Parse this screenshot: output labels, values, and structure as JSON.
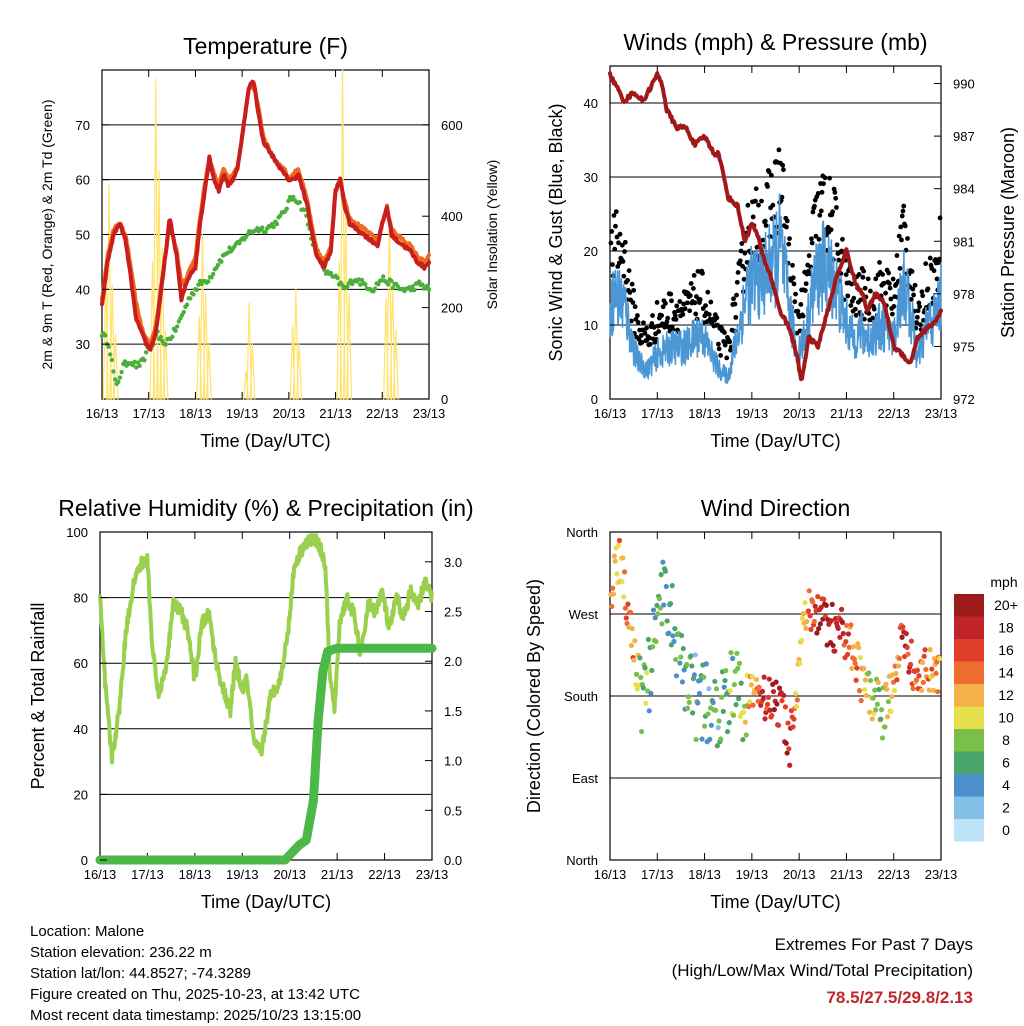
{
  "colors": {
    "temp2m": "#c81e1e",
    "temp9m": "#ee6a1e",
    "dewpoint": "#4caf3a",
    "solar": "#ffe36b",
    "wind": "#4b97d5",
    "gust": "#000000",
    "pressure": "#a01818",
    "rh": "#9ad04e",
    "precip": "#4cb847",
    "extremes": "#c0282d"
  },
  "chart_data": [
    {
      "id": "temperature",
      "type": "line",
      "title": "Temperature (F)",
      "xlabel": "Time (Day/UTC)",
      "ylabel": "2m & 9m T (Red, Orange) & 2m Td (Green)",
      "y2label": "Solar Insolation (Yellow)",
      "x_ticks": [
        "16/13",
        "17/13",
        "18/13",
        "19/13",
        "20/13",
        "21/13",
        "22/13",
        "23/13"
      ],
      "ylim": [
        20,
        80
      ],
      "y_ticks": [
        30,
        40,
        50,
        60,
        70
      ],
      "y2lim": [
        0,
        720
      ],
      "y2_ticks": [
        0,
        200,
        400,
        600
      ],
      "series": [
        {
          "name": "2m T",
          "color_key": "temp2m",
          "x": [
            0,
            0.12,
            0.25,
            0.38,
            0.5,
            0.62,
            0.72,
            0.85,
            0.95,
            1.03,
            1.15,
            1.3,
            1.45,
            1.6,
            1.7,
            1.8,
            1.9,
            2.0,
            2.1,
            2.2,
            2.3,
            2.4,
            2.5,
            2.6,
            2.7,
            2.8,
            2.9,
            3.0,
            3.1,
            3.15,
            3.25,
            3.35,
            3.45,
            3.6,
            3.75,
            3.9,
            4.0,
            4.1,
            4.2,
            4.3,
            4.4,
            4.5,
            4.6,
            4.75,
            4.9,
            5.0,
            5.1,
            5.2,
            5.3,
            5.45,
            5.6,
            5.75,
            5.9,
            6.0,
            6.1,
            6.2,
            6.3,
            6.45,
            6.6,
            6.75,
            6.9,
            7.0
          ],
          "y": [
            37,
            45,
            50,
            52,
            49,
            42,
            35,
            32,
            30,
            29,
            32,
            42,
            53,
            46,
            38,
            41,
            43,
            44,
            52,
            58,
            64,
            60,
            58,
            61,
            59,
            60,
            62,
            68,
            74,
            77,
            78,
            72,
            67,
            65,
            63,
            61,
            60,
            60,
            61,
            58,
            55,
            50,
            46,
            44,
            47,
            58,
            60,
            55,
            52,
            51,
            50,
            49,
            48,
            52,
            55,
            50,
            49,
            48,
            47,
            45,
            44,
            45
          ]
        },
        {
          "name": "9m T",
          "color_key": "temp9m",
          "x": [
            0,
            0.12,
            0.25,
            0.38,
            0.5,
            0.62,
            0.72,
            0.85,
            0.95,
            1.03,
            1.15,
            1.3,
            1.45,
            1.6,
            1.7,
            1.8,
            1.9,
            2.0,
            2.1,
            2.2,
            2.3,
            2.4,
            2.5,
            2.6,
            2.7,
            2.8,
            2.9,
            3.0,
            3.1,
            3.15,
            3.25,
            3.35,
            3.45,
            3.6,
            3.75,
            3.9,
            4.0,
            4.1,
            4.2,
            4.3,
            4.4,
            4.5,
            4.6,
            4.75,
            4.9,
            5.0,
            5.1,
            5.2,
            5.3,
            5.45,
            5.6,
            5.75,
            5.9,
            6.0,
            6.1,
            6.2,
            6.3,
            6.45,
            6.6,
            6.75,
            6.9,
            7.0
          ],
          "y": [
            38,
            46,
            51,
            52,
            50,
            44,
            38,
            33,
            31,
            30,
            33,
            43,
            52,
            47,
            41,
            42,
            44,
            46,
            53,
            59,
            64,
            61,
            59,
            62,
            60,
            61,
            62,
            68,
            74,
            77,
            77,
            73,
            68,
            65,
            63,
            62,
            60,
            61,
            62,
            59,
            56,
            51,
            47,
            45,
            48,
            58,
            60,
            56,
            53,
            52,
            51,
            50,
            49,
            52,
            55,
            51,
            50,
            49,
            48,
            46,
            45,
            46
          ]
        },
        {
          "name": "2m Td",
          "color_key": "dewpoint",
          "x": [
            0,
            0.15,
            0.3,
            0.45,
            0.6,
            0.75,
            0.9,
            1.0,
            1.1,
            1.2,
            1.3,
            1.45,
            1.6,
            1.75,
            1.9,
            2.1,
            2.3,
            2.5,
            2.7,
            2.9,
            3.1,
            3.3,
            3.5,
            3.7,
            3.9,
            4.0,
            4.1,
            4.2,
            4.35,
            4.5,
            4.65,
            4.8,
            5.0,
            5.2,
            5.4,
            5.6,
            5.8,
            6.0,
            6.2,
            6.4,
            6.6,
            6.8,
            7.0
          ],
          "y": [
            32,
            30,
            22,
            26,
            27,
            26,
            27,
            30,
            30,
            32,
            30,
            31,
            33,
            36,
            39,
            41,
            42,
            45,
            47,
            48,
            50,
            51,
            51,
            52,
            54,
            56,
            57,
            56,
            54,
            49,
            46,
            43,
            42,
            40,
            42,
            41,
            40,
            42,
            41,
            40,
            40,
            41,
            40
          ]
        }
      ],
      "solar": {
        "name": "Solar Insolation",
        "color_key": "solar",
        "days": [
          {
            "start": 0.0,
            "peaks": [
              270,
              470,
              250,
              140
            ]
          },
          {
            "start": 1.0,
            "peaks": [
              300,
              700,
              500,
              330,
              150
            ]
          },
          {
            "start": 2.0,
            "peaks": [
              180,
              360,
              230,
              120
            ]
          },
          {
            "start": 3.0,
            "peaks": [
              60,
              210,
              120
            ]
          },
          {
            "start": 4.0,
            "peaks": [
              160,
              240,
              120
            ]
          },
          {
            "start": 5.0,
            "peaks": [
              300,
              720,
              400,
              230
            ]
          },
          {
            "start": 6.0,
            "peaks": [
              220,
              410,
              260,
              150
            ]
          }
        ]
      }
    },
    {
      "id": "winds",
      "type": "scatter",
      "title": "Winds (mph) & Pressure (mb)",
      "xlabel": "Time (Day/UTC)",
      "ylabel": "Sonic Wind & Gust (Blue, Black)",
      "y2label": "Station Pressure (Maroon)",
      "x_ticks": [
        "16/13",
        "17/13",
        "18/13",
        "19/13",
        "20/13",
        "21/13",
        "22/13",
        "23/13"
      ],
      "ylim": [
        0,
        45
      ],
      "y_ticks": [
        0,
        10,
        20,
        30,
        40
      ],
      "y2lim": [
        972,
        991
      ],
      "y2_ticks": [
        972,
        975,
        978,
        981,
        984,
        987,
        990
      ],
      "wind_profile": {
        "x": [
          0,
          0.1,
          0.3,
          0.45,
          0.6,
          0.8,
          1.0,
          1.3,
          1.6,
          1.9,
          2.0,
          2.3,
          2.5,
          2.6,
          2.75,
          2.9,
          3.1,
          3.3,
          3.5,
          3.6,
          3.75,
          3.95,
          4.15,
          4.3,
          4.5,
          4.75,
          4.95,
          5.15,
          5.3,
          5.5,
          5.75,
          6.0,
          6.2,
          6.4,
          6.5,
          6.7,
          6.9,
          7.0
        ],
        "y": [
          12,
          14,
          13,
          8,
          5,
          4,
          6,
          7,
          7,
          9,
          8,
          4,
          3,
          6,
          10,
          15,
          16,
          17,
          19,
          21,
          14,
          6,
          9,
          15,
          18,
          16,
          11,
          8,
          9,
          8,
          10,
          8,
          16,
          10,
          5,
          10,
          11,
          14
        ]
      },
      "pressure": {
        "name": "Station Pressure",
        "color_key": "pressure",
        "x": [
          0,
          0.1,
          0.3,
          0.5,
          0.7,
          0.9,
          1.0,
          1.1,
          1.2,
          1.4,
          1.6,
          1.8,
          2.0,
          2.2,
          2.3,
          2.5,
          2.7,
          2.85,
          3.0,
          3.1,
          3.25,
          3.4,
          3.6,
          3.8,
          3.95,
          4.05,
          4.2,
          4.4,
          4.6,
          4.8,
          5.0,
          5.2,
          5.35,
          5.45,
          5.6,
          5.8,
          6.0,
          6.2,
          6.35,
          6.5,
          6.7,
          6.9,
          7.0
        ],
        "y": [
          990.5,
          990,
          989,
          989.5,
          989,
          990,
          990.5,
          990,
          988.5,
          987.5,
          987.5,
          986.5,
          987,
          986,
          986,
          983.5,
          983,
          981,
          982,
          981.5,
          980,
          979,
          977,
          976,
          974.5,
          973,
          975.5,
          975,
          977,
          979,
          980.5,
          978.5,
          978,
          977,
          978,
          977.5,
          975,
          974.5,
          974,
          975.5,
          976,
          976.5,
          977
        ]
      }
    },
    {
      "id": "humidity",
      "type": "line",
      "title": "Relative Humidity (%) & Precipitation (in)",
      "xlabel": "Time (Day/UTC)",
      "ylabel": "Percent & Total Rainfall",
      "x_ticks": [
        "16/13",
        "17/13",
        "18/13",
        "19/13",
        "20/13",
        "21/13",
        "22/13",
        "23/13"
      ],
      "ylim": [
        0,
        100
      ],
      "y_ticks": [
        0,
        20,
        40,
        60,
        80,
        100
      ],
      "y2lim": [
        0,
        3.3
      ],
      "y2_ticks": [
        "0.0",
        "0.5",
        "1.0",
        "1.5",
        "2.0",
        "2.5",
        "3.0"
      ],
      "series": [
        {
          "name": "Relative Humidity",
          "color_key": "rh",
          "x": [
            0,
            0.1,
            0.25,
            0.4,
            0.55,
            0.7,
            0.85,
            1.0,
            1.1,
            1.25,
            1.4,
            1.55,
            1.7,
            1.85,
            2.0,
            2.15,
            2.3,
            2.45,
            2.6,
            2.75,
            2.85,
            3.0,
            3.1,
            3.25,
            3.4,
            3.6,
            3.8,
            3.95,
            4.1,
            4.3,
            4.5,
            4.6,
            4.75,
            4.85,
            4.95,
            5.05,
            5.2,
            5.35,
            5.5,
            5.65,
            5.8,
            5.95,
            6.1,
            6.25,
            6.4,
            6.55,
            6.7,
            6.85,
            7.0
          ],
          "y": [
            80,
            55,
            31,
            45,
            70,
            84,
            90,
            92,
            65,
            50,
            60,
            78,
            76,
            70,
            55,
            72,
            75,
            60,
            52,
            45,
            60,
            52,
            55,
            35,
            33,
            50,
            55,
            68,
            90,
            96,
            98,
            97,
            90,
            55,
            46,
            72,
            80,
            75,
            62,
            78,
            76,
            82,
            70,
            80,
            74,
            82,
            77,
            85,
            80
          ]
        },
        {
          "name": "Total Precipitation",
          "color_key": "precip",
          "units": "in",
          "x": [
            0,
            1,
            2,
            3,
            3.9,
            4.0,
            4.2,
            4.35,
            4.5,
            4.6,
            4.7,
            4.8,
            5.0,
            6.0,
            7.0
          ],
          "y": [
            0,
            0,
            0,
            0,
            0,
            0.05,
            0.15,
            0.2,
            0.6,
            1.4,
            1.9,
            2.1,
            2.13,
            2.13,
            2.13
          ]
        }
      ]
    },
    {
      "id": "wind_direction",
      "type": "scatter",
      "title": "Wind Direction",
      "xlabel": "Time (Day/UTC)",
      "ylabel": "Direction (Colored By Speed)",
      "x_ticks": [
        "16/13",
        "17/13",
        "18/13",
        "19/13",
        "20/13",
        "21/13",
        "22/13",
        "23/13"
      ],
      "y_ticks": [
        "North",
        "East",
        "South",
        "West",
        "North"
      ],
      "ylim": [
        0,
        360
      ],
      "legend": {
        "title": "mph",
        "labels": [
          "0",
          "2",
          "4",
          "6",
          "8",
          "10",
          "12",
          "14",
          "16",
          "18",
          "20+"
        ],
        "colors": [
          "#bfe4f7",
          "#82c0e8",
          "#4b8fcb",
          "#4aa56b",
          "#7abf4a",
          "#e6e04c",
          "#f5b04c",
          "#f06b30",
          "#e04029",
          "#c0242a",
          "#9c1a1a"
        ]
      },
      "direction_profile": {
        "x": [
          0,
          0.1,
          0.2,
          0.3,
          0.45,
          0.55,
          0.7,
          0.85,
          1.0,
          1.15,
          1.3,
          1.45,
          1.6,
          1.8,
          2.0,
          2.2,
          2.4,
          2.6,
          2.8,
          3.0,
          3.2,
          3.4,
          3.6,
          3.8,
          4.0,
          4.1,
          4.2,
          4.35,
          4.5,
          4.7,
          4.9,
          5.1,
          5.25,
          5.45,
          5.65,
          5.85,
          6.0,
          6.15,
          6.3,
          6.45,
          6.6,
          6.8,
          7.0
        ],
        "y": [
          290,
          320,
          330,
          300,
          250,
          210,
          180,
          210,
          250,
          295,
          280,
          230,
          190,
          180,
          175,
          165,
          185,
          185,
          175,
          180,
          180,
          180,
          170,
          130,
          215,
          260,
          270,
          270,
          265,
          255,
          250,
          235,
          210,
          180,
          175,
          170,
          200,
          245,
          230,
          200,
          210,
          205,
          210
        ]
      },
      "speed_profile": {
        "x": [
          0,
          0.4,
          0.8,
          1.2,
          1.6,
          2.0,
          2.4,
          2.8,
          3.2,
          3.5,
          3.8,
          4.0,
          4.4,
          4.8,
          5.2,
          5.6,
          6.0,
          6.2,
          6.6,
          7.0
        ],
        "y": [
          12,
          14,
          6,
          6,
          6,
          5,
          6,
          8,
          16,
          18,
          18,
          9,
          18,
          18,
          14,
          8,
          12,
          18,
          14,
          12
        ]
      }
    }
  ],
  "footer": {
    "location": "Location: Malone",
    "elevation": "Station elevation: 236.22 m",
    "latlon": "Station lat/lon: 44.8527; -74.3289",
    "created": "Figure created on Thu, 2025-10-23, at 13:42 UTC",
    "recent": "Most recent data timestamp: 2025/10/23 13:15:00"
  },
  "extremes": {
    "title": "Extremes For Past 7 Days",
    "subtitle": "(High/Low/Max Wind/Total Precipitation)",
    "values": "78.5/27.5/29.8/2.13"
  }
}
